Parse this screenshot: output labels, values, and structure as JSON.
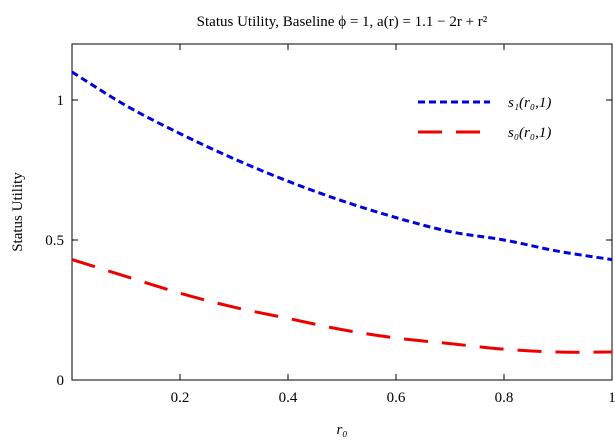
{
  "chart_data": {
    "type": "line",
    "title": "Status Utility, Baseline ϕ = 1, a(r) = 1.1 − 2r + r²",
    "xlabel": "r₀",
    "ylabel": "Status Utility",
    "xlim": [
      0,
      1
    ],
    "ylim": [
      0,
      1.2
    ],
    "x_ticks": [
      0.2,
      0.4,
      0.6,
      0.8,
      1
    ],
    "x_tick_labels": [
      "0.2",
      "0.4",
      "0.6",
      "0.8",
      "1"
    ],
    "y_ticks": [
      0,
      0.5,
      1
    ],
    "y_tick_labels": [
      "0",
      "0.5",
      "1"
    ],
    "grid": false,
    "legend_position": "top-right",
    "series": [
      {
        "name": "s₁(r₀,1)",
        "color": "#0000dd",
        "style": "short-dash",
        "x": [
          0,
          0.1,
          0.2,
          0.3,
          0.4,
          0.5,
          0.6,
          0.7,
          0.8,
          0.9,
          1.0
        ],
        "y": [
          1.1,
          0.98,
          0.88,
          0.79,
          0.71,
          0.64,
          0.58,
          0.53,
          0.5,
          0.46,
          0.43
        ]
      },
      {
        "name": "s₀(r₀,1)",
        "color": "#ee0000",
        "style": "long-dash",
        "x": [
          0,
          0.1,
          0.2,
          0.3,
          0.4,
          0.5,
          0.6,
          0.7,
          0.8,
          0.9,
          1.0
        ],
        "y": [
          0.43,
          0.37,
          0.31,
          0.26,
          0.22,
          0.18,
          0.15,
          0.13,
          0.11,
          0.1,
          0.1
        ]
      }
    ]
  }
}
